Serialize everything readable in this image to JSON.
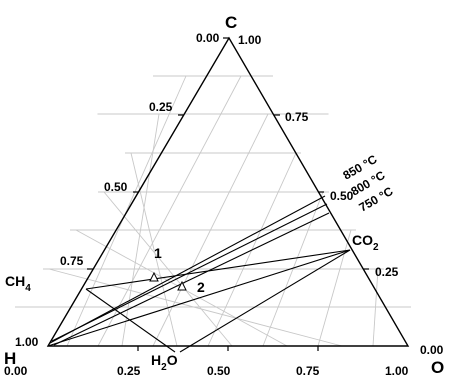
{
  "diagram": {
    "type": "ternary",
    "vertices": {
      "top": "C",
      "left": "H",
      "right": "O"
    },
    "left_edge_ticks": [
      "0.00",
      "0.25",
      "0.50",
      "0.75",
      "1.00"
    ],
    "right_edge_ticks": [
      "1.00",
      "0.75",
      "0.50",
      "0.25",
      "0.00"
    ],
    "bottom_edge_ticks": [
      "0.00",
      "0.25",
      "0.50",
      "0.75",
      "1.00"
    ],
    "species": {
      "ch4": {
        "main": "CH",
        "sub": "4"
      },
      "co2": {
        "main": "CO",
        "sub": "2"
      },
      "h2o": {
        "main": "H",
        "sub": "2",
        "tail": "O"
      }
    },
    "temperatures": [
      "850 °C",
      "800 °C",
      "750 °C"
    ],
    "points": [
      {
        "label": "1",
        "marker": "triangle"
      },
      {
        "label": "2",
        "marker": "triangle"
      }
    ]
  }
}
